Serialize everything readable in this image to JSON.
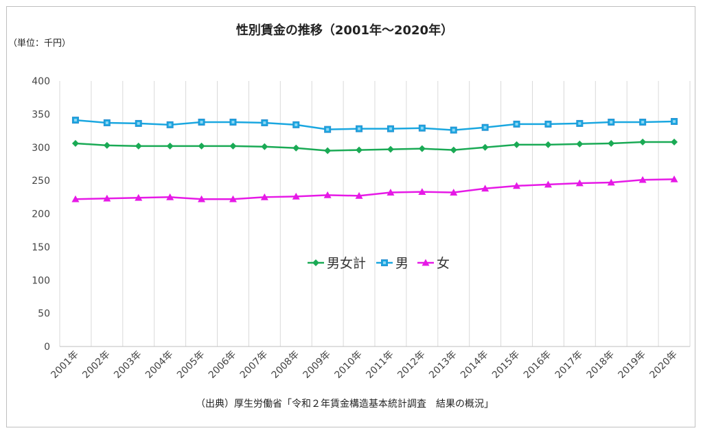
{
  "chart_data": {
    "type": "line",
    "title": "性別賃金の推移（2001年～2020年）",
    "unit_label": "（単位：千円）",
    "source": "（出典）厚生労働省「令和２年賃金構造基本統計調査　結果の概況」",
    "categories": [
      "2001年",
      "2002年",
      "2003年",
      "2004年",
      "2005年",
      "2006年",
      "2007年",
      "2008年",
      "2009年",
      "2010年",
      "2011年",
      "2012年",
      "2013年",
      "2014年",
      "2015年",
      "2016年",
      "2017年",
      "2018年",
      "2019年",
      "2020年"
    ],
    "ylim": [
      0,
      400
    ],
    "yticks": [
      0,
      50,
      100,
      150,
      200,
      250,
      300,
      350,
      400
    ],
    "grid": "vertical",
    "legend_position": "center",
    "series": [
      {
        "name": "男女計",
        "color": "#1aaa55",
        "marker": "diamond",
        "values": [
          306,
          303,
          302,
          302,
          302,
          302,
          301,
          299,
          295,
          296,
          297,
          298,
          296,
          300,
          304,
          304,
          305,
          306,
          308,
          308
        ]
      },
      {
        "name": "男",
        "color": "#1aa7e0",
        "marker": "square",
        "values": [
          341,
          337,
          336,
          334,
          338,
          338,
          337,
          334,
          327,
          328,
          328,
          329,
          326,
          330,
          335,
          335,
          336,
          338,
          338,
          339
        ]
      },
      {
        "name": "女",
        "color": "#e619e6",
        "marker": "triangle",
        "values": [
          222,
          223,
          224,
          225,
          222,
          222,
          225,
          226,
          228,
          227,
          232,
          233,
          232,
          238,
          242,
          244,
          246,
          247,
          251,
          252
        ]
      }
    ]
  }
}
